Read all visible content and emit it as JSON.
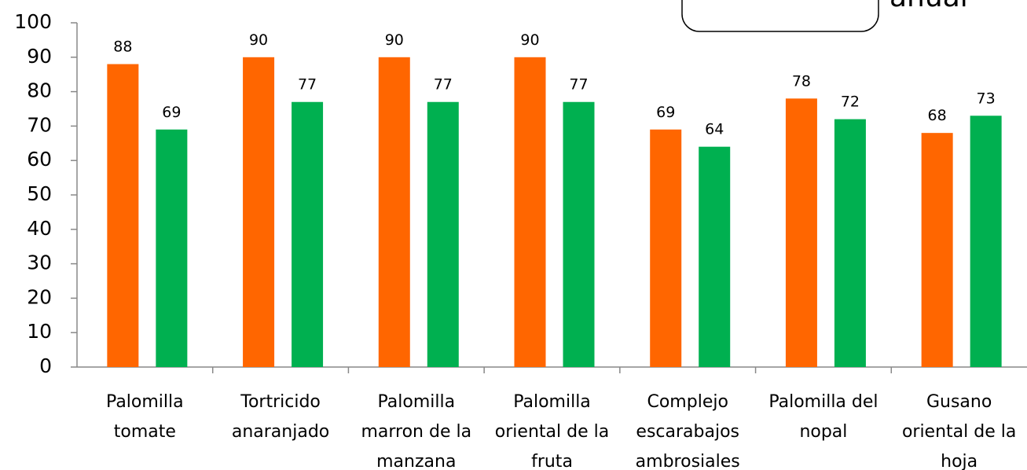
{
  "chart_data": {
    "type": "bar",
    "annotation": "anual",
    "categories": [
      "Palomilla\ntomate",
      "Tortricido\nanaranjado",
      "Palomilla\nmarron de la\nmanzana",
      "Palomilla\noriental de la\nfruta",
      "Complejo\nescarabajos\nambrosiales",
      "Palomilla del\nnopal",
      "Gusano\noriental de la\nhoja"
    ],
    "series": [
      {
        "color": "#ff6600",
        "values": [
          88,
          90,
          90,
          90,
          69,
          78,
          68
        ]
      },
      {
        "color": "#00b050",
        "values": [
          69,
          77,
          77,
          77,
          64,
          72,
          73
        ]
      }
    ],
    "ylim": [
      0,
      100
    ],
    "yticks": [
      0,
      10,
      20,
      30,
      40,
      50,
      60,
      70,
      80,
      90,
      100
    ],
    "grid": false
  }
}
